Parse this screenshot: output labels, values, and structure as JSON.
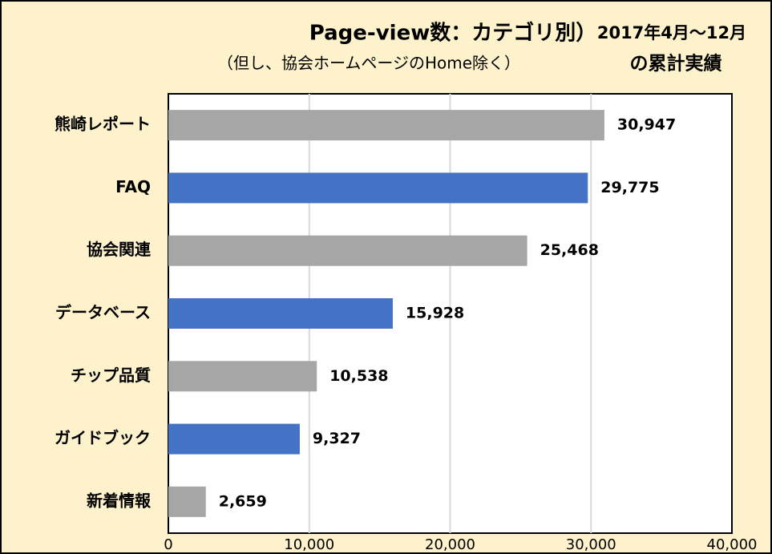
{
  "chart_data": {
    "type": "bar",
    "orientation": "horizontal",
    "title": "Page-view数：カテゴリ別）",
    "title_date": "2017年4月～12月",
    "subtitle": "（但し、協会ホームページのHome除く）",
    "subtitle_right": "の累計実績",
    "categories": [
      "熊崎レポート",
      "FAQ",
      "協会関連",
      "データベース",
      "チップ品質",
      "ガイドブック",
      "新着情報"
    ],
    "values": [
      30947,
      29775,
      25468,
      15928,
      10538,
      9327,
      2659
    ],
    "value_labels": [
      "30,947",
      "29,775",
      "25,468",
      "15,928",
      "10,538",
      "9,327",
      "2,659"
    ],
    "colors": [
      "#a6a6a6",
      "#4472c4",
      "#a6a6a6",
      "#4472c4",
      "#a6a6a6",
      "#4472c4",
      "#a6a6a6"
    ],
    "xlim": [
      0,
      40000
    ],
    "xticks": [
      0,
      {
        "value": 10000,
        "label": "10,000"
      },
      {
        "value": 20000,
        "label": "20,000"
      },
      {
        "value": 30000,
        "label": "30,000"
      },
      {
        "value": 40000,
        "label": "40,000"
      }
    ],
    "grid": true
  }
}
